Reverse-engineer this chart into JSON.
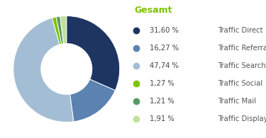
{
  "title": "Gesamt",
  "title_color": "#7dc400",
  "slices": [
    31.6,
    16.27,
    47.74,
    1.27,
    1.21,
    1.91
  ],
  "colors": [
    "#1e3461",
    "#5b82b0",
    "#a3bdd4",
    "#7dc400",
    "#5a9966",
    "#c2e09a"
  ],
  "labels": [
    "31,60 %",
    "16,27 %",
    "47,74 %",
    "1,27 %",
    "1,21 %",
    "1,91 %"
  ],
  "legend_labels": [
    "Traffic Direct",
    "Traffic Referra",
    "Traffic Search",
    "Traffic Social",
    "Traffic Mail",
    "Traffic Display"
  ],
  "background_color": "#ffffff",
  "startangle": 90
}
